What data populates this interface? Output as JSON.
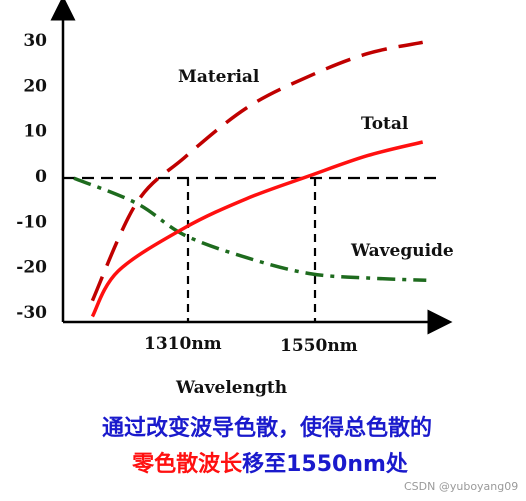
{
  "chart_data": {
    "type": "line",
    "xlabel": "Wavelength",
    "ylim": [
      -30,
      30
    ],
    "yticks": [
      30,
      20,
      10,
      0,
      -10,
      -20,
      -30
    ],
    "x_markers": [
      "1310nm",
      "1550nm"
    ],
    "grid": false,
    "series": [
      {
        "name": "Material",
        "color": "#c00000",
        "style": "dashed",
        "points": [
          [
            0.08,
            -27.5
          ],
          [
            0.2,
            -6
          ],
          [
            0.33,
            4
          ],
          [
            0.5,
            15
          ],
          [
            0.67,
            22
          ],
          [
            0.83,
            27
          ],
          [
            0.98,
            29.5
          ]
        ]
      },
      {
        "name": "Total",
        "color": "#ff1010",
        "style": "solid",
        "points": [
          [
            0.08,
            -31
          ],
          [
            0.15,
            -21
          ],
          [
            0.33,
            -11.5
          ],
          [
            0.5,
            -5
          ],
          [
            0.67,
            0
          ],
          [
            0.83,
            4.5
          ],
          [
            0.98,
            7.5
          ]
        ]
      },
      {
        "name": "Waveguide",
        "color": "#1e6b1e",
        "style": "dash-dot",
        "points": [
          [
            0.03,
            -0.5
          ],
          [
            0.2,
            -6
          ],
          [
            0.33,
            -13
          ],
          [
            0.5,
            -18
          ],
          [
            0.67,
            -21.5
          ],
          [
            0.83,
            -22.5
          ],
          [
            0.99,
            -23
          ]
        ]
      }
    ]
  },
  "caption": {
    "line1": "通过改变波导色散，使得总色散的",
    "line2_red": "零色散波长",
    "line2_blue": "移至1550nm处"
  },
  "watermark": "CSDN @yuboyang09",
  "colors": {
    "caption_blue": "#1a1acc",
    "caption_red": "#ff1010"
  }
}
